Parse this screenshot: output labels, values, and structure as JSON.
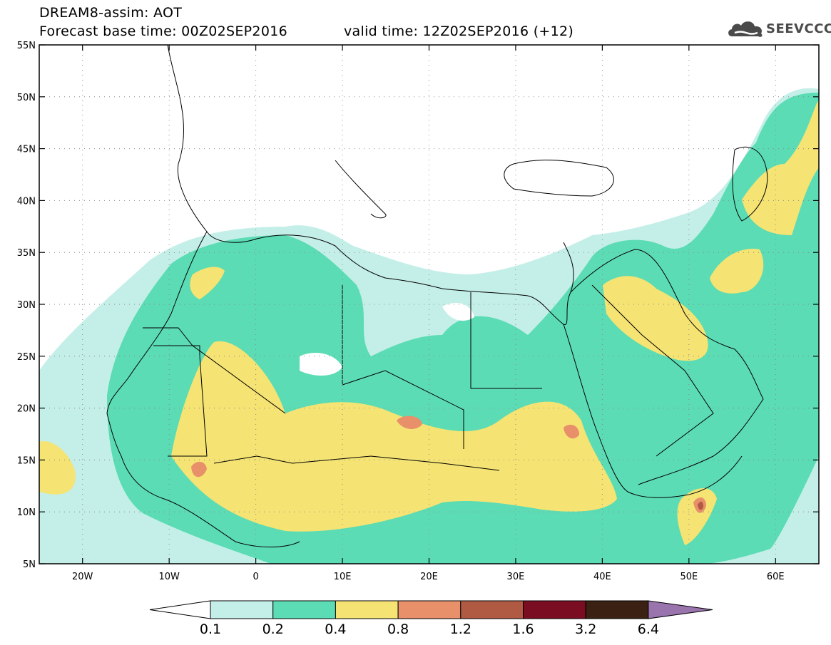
{
  "header": {
    "line1": "DREAM8-assim: AOT",
    "line2": "Forecast base time: 00Z02SEP2016",
    "line3": "valid time: 12Z02SEP2016 (+12)"
  },
  "logo": {
    "text": "SEEVCCC",
    "icon": "cloud-icon"
  },
  "map": {
    "lat_labels": [
      "55N",
      "50N",
      "45N",
      "40N",
      "35N",
      "30N",
      "25N",
      "20N",
      "15N",
      "10N",
      "5N"
    ],
    "lon_labels": [
      "20W",
      "10W",
      "0",
      "10E",
      "20E",
      "30E",
      "40E",
      "50E",
      "60E"
    ],
    "lat_range": [
      5,
      55
    ],
    "lon_range": [
      -25,
      65
    ],
    "grid": "dotted"
  },
  "legend": {
    "colors": [
      "#ffffff",
      "#c4efe8",
      "#5cdcb4",
      "#f5e373",
      "#e8906a",
      "#b05a43",
      "#7a0d22",
      "#3a2112",
      "#9a74ad"
    ],
    "labels": [
      "0.1",
      "0.2",
      "0.4",
      "0.8",
      "1.2",
      "1.6",
      "3.2",
      "6.4"
    ]
  }
}
